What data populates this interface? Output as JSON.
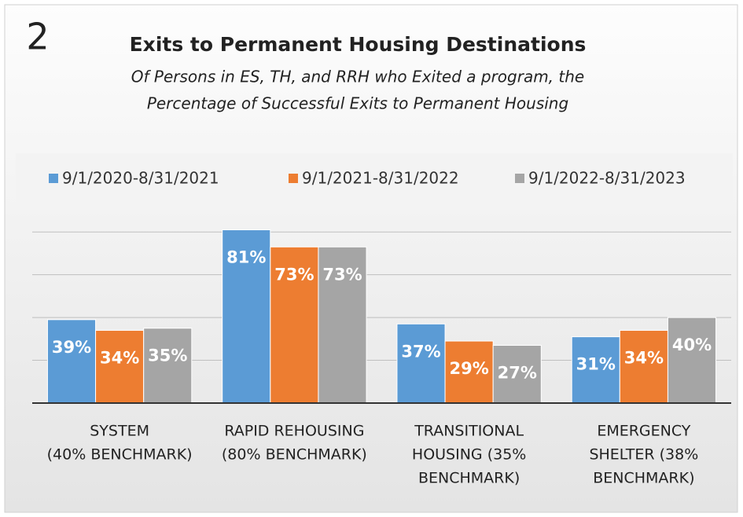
{
  "chart_data": {
    "type": "bar",
    "number": "2",
    "title": "Exits to Permanent Housing Destinations",
    "subtitle": [
      "Of Persons in ES, TH, and RRH who Exited a program, the",
      "Percentage of Successful Exits to Permanent Housing"
    ],
    "categories": [
      [
        "SYSTEM",
        "(40% BENCHMARK)"
      ],
      [
        "RAPID REHOUSING",
        "(80% BENCHMARK)"
      ],
      [
        "TRANSITIONAL",
        "HOUSING (35%",
        "BENCHMARK)"
      ],
      [
        "EMERGENCY",
        "SHELTER (38%",
        "BENCHMARK)"
      ]
    ],
    "series": [
      {
        "name": "9/1/2020-8/31/2021",
        "color": "#5b9bd5",
        "values": [
          39,
          81,
          37,
          31
        ],
        "value_labels": [
          "39%",
          "81%",
          "37%",
          "31%"
        ]
      },
      {
        "name": "9/1/2021-8/31/2022",
        "color": "#ed7d31",
        "values": [
          34,
          73,
          29,
          34
        ],
        "value_labels": [
          "34%",
          "73%",
          "29%",
          "34%"
        ]
      },
      {
        "name": "9/1/2022-8/31/2023",
        "color": "#a5a5a5",
        "values": [
          35,
          73,
          27,
          40
        ],
        "value_labels": [
          "35%",
          "73%",
          "27%",
          "40%"
        ]
      }
    ],
    "ylim": [
      0,
      90
    ],
    "yticks": [
      0,
      20,
      40,
      60,
      80
    ],
    "grid": true,
    "legend": "top"
  }
}
